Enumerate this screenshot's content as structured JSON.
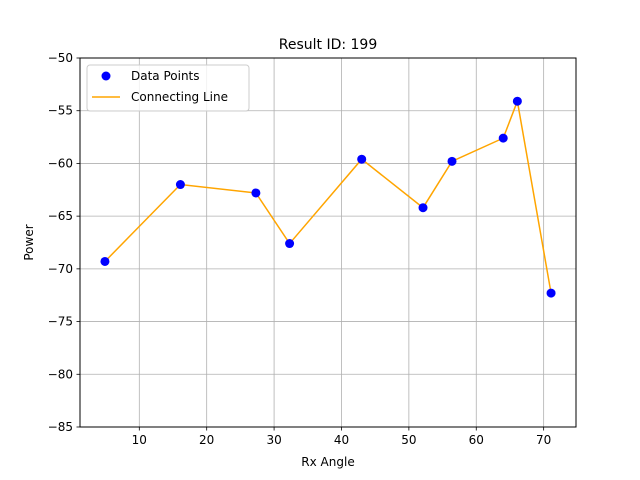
{
  "chart_data": {
    "type": "line",
    "title": "Result ID: 199",
    "xlabel": "Rx Angle",
    "ylabel": "Power",
    "xlim": [
      1.2,
      74.8
    ],
    "ylim": [
      -85,
      -50
    ],
    "x_ticks": [
      10,
      20,
      30,
      40,
      50,
      60,
      70
    ],
    "y_ticks": [
      -85,
      -80,
      -75,
      -70,
      -65,
      -60,
      -55,
      -50
    ],
    "x_tick_labels": [
      "10",
      "20",
      "30",
      "40",
      "50",
      "60",
      "70"
    ],
    "y_tick_labels": [
      "−85",
      "−80",
      "−75",
      "−70",
      "−65",
      "−60",
      "−55",
      "−50"
    ],
    "grid": true,
    "legend_position": "top-left",
    "series": [
      {
        "name": "Data Points",
        "kind": "scatter",
        "color": "#0000ff",
        "x": [
          4.9,
          16.1,
          27.3,
          32.3,
          43.0,
          52.1,
          56.4,
          64.0,
          66.1,
          71.1
        ],
        "y": [
          -69.3,
          -62.0,
          -62.8,
          -67.6,
          -59.6,
          -64.2,
          -59.8,
          -57.6,
          -54.1,
          -72.3
        ]
      },
      {
        "name": "Connecting Line",
        "kind": "line",
        "color": "#ffa500",
        "x": [
          4.9,
          16.1,
          27.3,
          32.3,
          43.0,
          52.1,
          56.4,
          64.0,
          66.1,
          71.1
        ],
        "y": [
          -69.3,
          -62.0,
          -62.8,
          -67.6,
          -59.6,
          -64.2,
          -59.8,
          -57.6,
          -54.1,
          -72.3
        ]
      }
    ]
  }
}
